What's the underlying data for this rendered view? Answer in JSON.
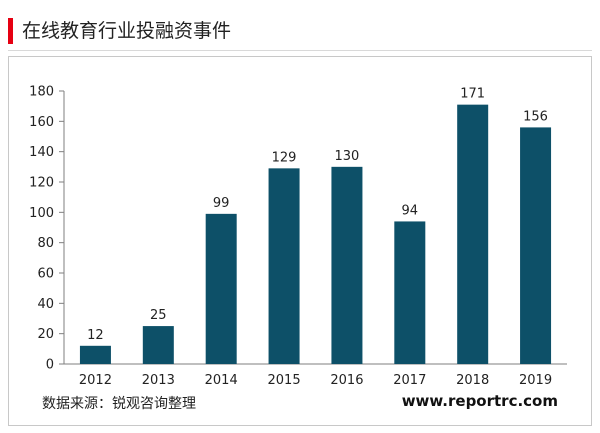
{
  "header": {
    "title": "在线教育行业投融资事件"
  },
  "footer": {
    "source": "数据来源：锐观咨询整理",
    "website": "www.reportrc.com"
  },
  "colors": {
    "bar": "#0d5068",
    "accent": "#e60012",
    "axis": "#7f7f7f"
  },
  "chart_data": {
    "type": "bar",
    "categories": [
      "2012",
      "2013",
      "2014",
      "2015",
      "2016",
      "2017",
      "2018",
      "2019"
    ],
    "values": [
      12,
      25,
      99,
      129,
      130,
      94,
      171,
      156
    ],
    "title": "在线教育行业投融资事件",
    "xlabel": "",
    "ylabel": "",
    "ylim": [
      0,
      180
    ],
    "yticks": [
      0,
      20,
      40,
      60,
      80,
      100,
      120,
      140,
      160,
      180
    ],
    "grid": false,
    "legend": "none",
    "data_labels": true
  }
}
